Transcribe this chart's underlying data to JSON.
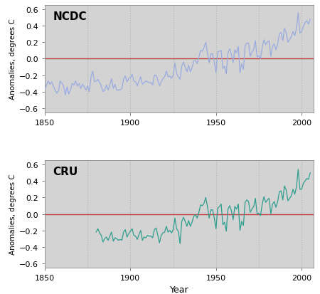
{
  "title_top": "NCDC",
  "title_bottom": "CRU",
  "xlabel": "Year",
  "ylabel": "Anomalies, degrees C",
  "xlim": [
    1850,
    2007
  ],
  "ylim": [
    -0.65,
    0.65
  ],
  "yticks": [
    -0.6,
    -0.4,
    -0.2,
    0.0,
    0.2,
    0.4,
    0.6
  ],
  "xticks": [
    1850,
    1900,
    1950,
    2000
  ],
  "vgrid_years": [
    1875,
    1900,
    1925,
    1950,
    1975,
    2000
  ],
  "bg_color": "#d3d3d3",
  "fig_bg": "#ffffff",
  "ncdc_color": "#9aabe0",
  "cru_color": "#2e9e8e",
  "zero_line_color": "#c04040",
  "vgrid_color": "#b0b8b0",
  "ncdc_years": [
    1850,
    1851,
    1852,
    1853,
    1854,
    1855,
    1856,
    1857,
    1858,
    1859,
    1860,
    1861,
    1862,
    1863,
    1864,
    1865,
    1866,
    1867,
    1868,
    1869,
    1870,
    1871,
    1872,
    1873,
    1874,
    1875,
    1876,
    1877,
    1878,
    1879,
    1880,
    1881,
    1882,
    1883,
    1884,
    1885,
    1886,
    1887,
    1888,
    1889,
    1890,
    1891,
    1892,
    1893,
    1894,
    1895,
    1896,
    1897,
    1898,
    1899,
    1900,
    1901,
    1902,
    1903,
    1904,
    1905,
    1906,
    1907,
    1908,
    1909,
    1910,
    1911,
    1912,
    1913,
    1914,
    1915,
    1916,
    1917,
    1918,
    1919,
    1920,
    1921,
    1922,
    1923,
    1924,
    1925,
    1926,
    1927,
    1928,
    1929,
    1930,
    1931,
    1932,
    1933,
    1934,
    1935,
    1936,
    1937,
    1938,
    1939,
    1940,
    1941,
    1942,
    1943,
    1944,
    1945,
    1946,
    1947,
    1948,
    1949,
    1950,
    1951,
    1952,
    1953,
    1954,
    1955,
    1956,
    1957,
    1958,
    1959,
    1960,
    1961,
    1962,
    1963,
    1964,
    1965,
    1966,
    1967,
    1968,
    1969,
    1970,
    1971,
    1972,
    1973,
    1974,
    1975,
    1976,
    1977,
    1978,
    1979,
    1980,
    1981,
    1982,
    1983,
    1984,
    1985,
    1986,
    1987,
    1988,
    1989,
    1990,
    1991,
    1992,
    1993,
    1994,
    1995,
    1996,
    1997,
    1998,
    1999,
    2000,
    2001,
    2002,
    2003,
    2004,
    2005
  ],
  "ncdc_vals": [
    -0.37,
    -0.32,
    -0.27,
    -0.31,
    -0.28,
    -0.33,
    -0.38,
    -0.42,
    -0.39,
    -0.27,
    -0.3,
    -0.33,
    -0.44,
    -0.34,
    -0.43,
    -0.38,
    -0.3,
    -0.32,
    -0.27,
    -0.33,
    -0.3,
    -0.36,
    -0.31,
    -0.34,
    -0.38,
    -0.33,
    -0.4,
    -0.22,
    -0.15,
    -0.28,
    -0.27,
    -0.25,
    -0.29,
    -0.33,
    -0.4,
    -0.38,
    -0.32,
    -0.38,
    -0.32,
    -0.24,
    -0.36,
    -0.31,
    -0.38,
    -0.38,
    -0.38,
    -0.36,
    -0.25,
    -0.21,
    -0.28,
    -0.24,
    -0.23,
    -0.19,
    -0.27,
    -0.28,
    -0.33,
    -0.27,
    -0.22,
    -0.31,
    -0.29,
    -0.27,
    -0.28,
    -0.29,
    -0.29,
    -0.32,
    -0.2,
    -0.2,
    -0.26,
    -0.33,
    -0.28,
    -0.24,
    -0.22,
    -0.15,
    -0.22,
    -0.21,
    -0.24,
    -0.2,
    -0.05,
    -0.18,
    -0.22,
    -0.25,
    -0.09,
    -0.04,
    -0.1,
    -0.16,
    -0.08,
    -0.16,
    -0.11,
    -0.03,
    -0.02,
    -0.06,
    0.02,
    0.1,
    0.09,
    0.14,
    0.2,
    0.07,
    -0.05,
    0.06,
    0.06,
    -0.04,
    -0.17,
    0.08,
    0.09,
    0.1,
    -0.12,
    -0.09,
    -0.18,
    0.07,
    0.12,
    0.05,
    -0.05,
    0.11,
    0.07,
    0.15,
    -0.17,
    -0.06,
    -0.13,
    0.16,
    0.19,
    0.19,
    0.03,
    0.08,
    0.11,
    0.22,
    0.02,
    0.04,
    0.0,
    0.14,
    0.23,
    0.17,
    0.2,
    0.22,
    0.03,
    0.15,
    0.18,
    0.11,
    0.18,
    0.3,
    0.32,
    0.22,
    0.37,
    0.32,
    0.2,
    0.23,
    0.27,
    0.33,
    0.28,
    0.37,
    0.56,
    0.31,
    0.33,
    0.39,
    0.44,
    0.46,
    0.42,
    0.48
  ],
  "cru_years": [
    1880,
    1881,
    1882,
    1883,
    1884,
    1885,
    1886,
    1887,
    1888,
    1889,
    1890,
    1891,
    1892,
    1893,
    1894,
    1895,
    1896,
    1897,
    1898,
    1899,
    1900,
    1901,
    1902,
    1903,
    1904,
    1905,
    1906,
    1907,
    1908,
    1909,
    1910,
    1911,
    1912,
    1913,
    1914,
    1915,
    1916,
    1917,
    1918,
    1919,
    1920,
    1921,
    1922,
    1923,
    1924,
    1925,
    1926,
    1927,
    1928,
    1929,
    1930,
    1931,
    1932,
    1933,
    1934,
    1935,
    1936,
    1937,
    1938,
    1939,
    1940,
    1941,
    1942,
    1943,
    1944,
    1945,
    1946,
    1947,
    1948,
    1949,
    1950,
    1951,
    1952,
    1953,
    1954,
    1955,
    1956,
    1957,
    1958,
    1959,
    1960,
    1961,
    1962,
    1963,
    1964,
    1965,
    1966,
    1967,
    1968,
    1969,
    1970,
    1971,
    1972,
    1973,
    1974,
    1975,
    1976,
    1977,
    1978,
    1979,
    1980,
    1981,
    1982,
    1983,
    1984,
    1985,
    1986,
    1987,
    1988,
    1989,
    1990,
    1991,
    1992,
    1993,
    1994,
    1995,
    1996,
    1997,
    1998,
    1999,
    2000,
    2001,
    2002,
    2003,
    2004,
    2005
  ],
  "cru_vals": [
    -0.22,
    -0.18,
    -0.23,
    -0.26,
    -0.34,
    -0.3,
    -0.28,
    -0.32,
    -0.27,
    -0.22,
    -0.33,
    -0.29,
    -0.3,
    -0.32,
    -0.31,
    -0.32,
    -0.22,
    -0.19,
    -0.28,
    -0.24,
    -0.21,
    -0.18,
    -0.26,
    -0.27,
    -0.31,
    -0.25,
    -0.2,
    -0.32,
    -0.28,
    -0.29,
    -0.26,
    -0.27,
    -0.27,
    -0.29,
    -0.19,
    -0.17,
    -0.26,
    -0.35,
    -0.26,
    -0.23,
    -0.22,
    -0.15,
    -0.22,
    -0.2,
    -0.23,
    -0.19,
    -0.05,
    -0.18,
    -0.21,
    -0.36,
    -0.09,
    -0.04,
    -0.09,
    -0.15,
    -0.08,
    -0.15,
    -0.1,
    -0.03,
    -0.01,
    -0.05,
    0.02,
    0.11,
    0.1,
    0.13,
    0.2,
    0.09,
    -0.05,
    0.05,
    0.05,
    -0.05,
    -0.18,
    0.07,
    0.09,
    0.12,
    -0.13,
    -0.1,
    -0.21,
    0.06,
    0.1,
    0.04,
    -0.07,
    0.09,
    0.06,
    0.12,
    -0.2,
    -0.09,
    -0.14,
    0.14,
    0.17,
    0.15,
    0.02,
    0.06,
    0.09,
    0.19,
    0.0,
    0.01,
    -0.02,
    0.12,
    0.21,
    0.14,
    0.17,
    0.19,
    0.0,
    0.12,
    0.15,
    0.08,
    0.15,
    0.27,
    0.28,
    0.17,
    0.34,
    0.29,
    0.16,
    0.19,
    0.22,
    0.3,
    0.24,
    0.33,
    0.54,
    0.3,
    0.3,
    0.37,
    0.4,
    0.43,
    0.42,
    0.5
  ]
}
